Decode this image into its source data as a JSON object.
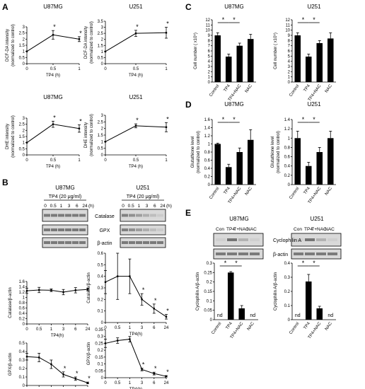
{
  "charts": {
    "A1": {
      "type": "line",
      "title": "U87MG",
      "x": [
        0,
        0.5,
        1
      ],
      "values": [
        1.0,
        2.35,
        2.0
      ],
      "err": [
        0,
        0.35,
        0.2
      ],
      "stars": [
        1,
        2
      ],
      "ylim": [
        0,
        3
      ],
      "yticks": [
        0,
        0.5,
        1,
        1.5,
        2,
        2.5,
        3
      ],
      "xticks": [
        "0",
        "0.5",
        "1"
      ],
      "xlabel": "TP4 (h)",
      "ylabel": [
        "DCF-DA intensity",
        "(normalized to control)"
      ]
    },
    "A2": {
      "type": "line",
      "title": "U251",
      "x": [
        0,
        0.5,
        1
      ],
      "values": [
        1.0,
        2.5,
        2.55
      ],
      "err": [
        0,
        0.25,
        0.45
      ],
      "stars": [
        1,
        2
      ],
      "ylim": [
        0,
        3.5
      ],
      "yticks": [
        0,
        0.5,
        1,
        1.5,
        2,
        2.5,
        3,
        3.5
      ],
      "xticks": [
        "0",
        "0.5",
        "1"
      ],
      "xlabel": "TP4 (h)",
      "ylabel": [
        "DCF-DA intensity",
        "(normalized to control)"
      ]
    },
    "A3": {
      "type": "line",
      "title": "U87MG",
      "x": [
        0,
        0.5,
        1
      ],
      "values": [
        1.0,
        2.5,
        2.15
      ],
      "err": [
        0,
        0.25,
        0.3
      ],
      "stars": [
        1,
        2
      ],
      "ylim": [
        0,
        3
      ],
      "yticks": [
        0,
        0.5,
        1,
        1.5,
        2,
        2.5,
        3
      ],
      "xticks": [
        "0",
        "0.5",
        "1"
      ],
      "xlabel": "TP4 (h)",
      "ylabel": [
        "DHE intensity",
        "(normalized to control)"
      ]
    },
    "A4": {
      "type": "line",
      "title": "U251",
      "x": [
        0,
        0.5,
        1
      ],
      "values": [
        1.0,
        2.2,
        2.1
      ],
      "err": [
        0,
        0.15,
        0.35
      ],
      "stars": [
        1,
        2
      ],
      "ylim": [
        0,
        3
      ],
      "yticks": [
        0,
        0.5,
        1,
        1.5,
        2,
        2.5,
        3
      ],
      "xticks": [
        "0",
        "0.5",
        "1"
      ],
      "xlabel": "TP4 (h)",
      "ylabel": [
        "DHE intensity",
        "(normalized to control)"
      ]
    },
    "B1": {
      "type": "line",
      "x": [
        0,
        0.5,
        1,
        3,
        6,
        24
      ],
      "values": [
        1.25,
        1.28,
        1.27,
        1.2,
        1.27,
        1.3
      ],
      "err": [
        0.1,
        0.1,
        0.05,
        0.1,
        0.1,
        0.05
      ],
      "stars": [],
      "ylim": [
        0,
        1.6
      ],
      "yticks": [
        0,
        0.2,
        0.4,
        0.6,
        0.8,
        1,
        1.2,
        1.4,
        1.6
      ],
      "xticks": [
        "0",
        "0.5",
        "1",
        "3",
        "6",
        "24"
      ],
      "xlabel": "TP4(h)",
      "ylabel": [
        "Catalase/β-actin"
      ]
    },
    "B2": {
      "type": "line",
      "x": [
        0,
        0.5,
        1,
        3,
        6,
        24
      ],
      "values": [
        0.35,
        0.4,
        0.4,
        0.2,
        0.12,
        0.05
      ],
      "err": [
        0.1,
        0.2,
        0.15,
        0.05,
        0.04,
        0.02
      ],
      "stars": [
        3,
        4,
        5
      ],
      "ylim": [
        0,
        0.6
      ],
      "yticks": [
        0,
        0.1,
        0.2,
        0.3,
        0.4,
        0.5,
        0.6
      ],
      "xticks": [
        "0",
        "0.5",
        "1",
        "3",
        "6",
        "24"
      ],
      "xlabel": "TP4(h)",
      "ylabel": [
        "Catalase/β-actin"
      ]
    },
    "B3": {
      "type": "line",
      "x": [
        0,
        0.5,
        1,
        3,
        6,
        24
      ],
      "values": [
        0.34,
        0.33,
        0.25,
        0.13,
        0.08,
        0.03
      ],
      "err": [
        0.04,
        0.05,
        0.05,
        0.03,
        0.02,
        0.01
      ],
      "stars": [
        3,
        4,
        5
      ],
      "ylim": [
        0,
        0.5
      ],
      "yticks": [
        0,
        0.1,
        0.2,
        0.3,
        0.4,
        0.5
      ],
      "xticks": [
        "0",
        "0.5",
        "1",
        "3",
        "6",
        "24"
      ],
      "xlabel": "TP4(h)",
      "ylabel": [
        "GPX/β-actin"
      ]
    },
    "B4": {
      "type": "line",
      "x": [
        0,
        0.5,
        1,
        3,
        6,
        24
      ],
      "values": [
        0.25,
        0.27,
        0.28,
        0.06,
        0.03,
        0.01
      ],
      "err": [
        0.03,
        0.02,
        0.02,
        0.01,
        0.01,
        0.005
      ],
      "stars": [
        3,
        4,
        5
      ],
      "ylim": [
        0,
        0.35
      ],
      "yticks": [
        0,
        0.05,
        0.1,
        0.15,
        0.2,
        0.25,
        0.3,
        0.35
      ],
      "xticks": [
        "0",
        "0.5",
        "1",
        "3",
        "6",
        "24"
      ],
      "xlabel": "TP4(h)",
      "ylabel": [
        "GPX/β-actin"
      ]
    },
    "C1": {
      "type": "bar",
      "title": "U87MG",
      "categories": [
        "Control",
        "TP4",
        "TP4+NAC",
        "NAC"
      ],
      "values": [
        9.0,
        4.9,
        7.0,
        8.3
      ],
      "err": [
        0.5,
        0.5,
        0.5,
        0.9
      ],
      "ylim": [
        0,
        12
      ],
      "yticks": [
        0,
        1,
        2,
        3,
        4,
        5,
        6,
        7,
        8,
        9,
        10,
        11,
        12
      ],
      "ylabel": [
        "Cell number ( x10⁵)"
      ],
      "sig": [
        [
          0,
          1
        ],
        [
          1,
          2
        ]
      ]
    },
    "C2": {
      "type": "bar",
      "title": "U251",
      "categories": [
        "Control",
        "TP4",
        "TP4+NAC",
        "NAC"
      ],
      "values": [
        9.0,
        4.9,
        7.5,
        8.4
      ],
      "err": [
        0.5,
        0.5,
        0.5,
        1.1
      ],
      "ylim": [
        0,
        12
      ],
      "yticks": [
        0,
        1,
        2,
        3,
        4,
        5,
        6,
        7,
        8,
        9,
        10,
        11,
        12
      ],
      "ylabel": [
        "Cell number ( x10⁵)"
      ],
      "sig": [
        [
          0,
          1
        ],
        [
          1,
          2
        ]
      ]
    },
    "D1": {
      "type": "bar",
      "title": "U87MG",
      "categories": [
        "Control",
        "TP4",
        "TP4+NAC",
        "NAC"
      ],
      "values": [
        1.0,
        0.43,
        0.8,
        1.1
      ],
      "err": [
        0.02,
        0.07,
        0.1,
        0.25
      ],
      "ylim": [
        0,
        1.6
      ],
      "yticks": [
        0,
        0.2,
        0.4,
        0.6,
        0.8,
        1,
        1.2,
        1.4,
        1.6
      ],
      "ylabel": [
        "Glutathione level",
        "(normalized to control)"
      ],
      "sig": [
        [
          0,
          1
        ],
        [
          1,
          2
        ]
      ]
    },
    "D2": {
      "type": "bar",
      "title": "U251",
      "categories": [
        "Control",
        "TP4",
        "TP4+NAC",
        "NAC"
      ],
      "values": [
        1.0,
        0.4,
        0.7,
        1.0
      ],
      "err": [
        0.15,
        0.08,
        0.1,
        0.15
      ],
      "ylim": [
        0,
        1.4
      ],
      "yticks": [
        0,
        0.2,
        0.4,
        0.6,
        0.8,
        1,
        1.2,
        1.4
      ],
      "ylabel": [
        "Glutathione level",
        "(normalized to control)"
      ],
      "sig": [
        [
          0,
          1
        ],
        [
          1,
          2
        ]
      ]
    },
    "E1": {
      "type": "bar",
      "categories": [
        "Control",
        "TP4",
        "TP4+NAC",
        "NAC"
      ],
      "values": [
        0,
        0.25,
        0.06,
        0
      ],
      "err": [
        0,
        0.005,
        0.015,
        0
      ],
      "nd": [
        0,
        3
      ],
      "ylim": [
        0,
        0.3
      ],
      "yticks": [
        0,
        0.05,
        0.1,
        0.15,
        0.2,
        0.25,
        0.3
      ],
      "ylabel": [
        "Cyclophilin A/β-actin"
      ],
      "sig": [
        [
          0,
          1
        ],
        [
          1,
          2
        ]
      ]
    },
    "E2": {
      "type": "bar",
      "categories": [
        "Control",
        "TP4",
        "TP4+NAC",
        "NAC"
      ],
      "values": [
        0,
        0.27,
        0.08,
        0
      ],
      "err": [
        0,
        0.05,
        0.015,
        0
      ],
      "nd": [
        0,
        3
      ],
      "ylim": [
        0,
        0.4
      ],
      "yticks": [
        0,
        0.1,
        0.2,
        0.3,
        0.4
      ],
      "ylabel": [
        "Cyclophilin A/β-actin"
      ],
      "sig": [
        [
          0,
          1
        ],
        [
          1,
          2
        ]
      ]
    }
  },
  "panels": {
    "A": "A",
    "B": "B",
    "C": "C",
    "D": "D",
    "E": "E"
  },
  "blots": {
    "B_title_left": "U87MG",
    "B_title_right": "U251",
    "B_treat": "TP4 (20 μg/ml)",
    "B_lanes": [
      "0",
      "0.5",
      "1",
      "3",
      "6",
      "24"
    ],
    "B_unit": "(h)",
    "B_labels": [
      "Catalase",
      "GPX",
      "β-actin"
    ],
    "E_title_left": "U87MG",
    "E_title_right": "U251",
    "E_lanes_left": [
      "Con",
      "TP4",
      "T+NAC",
      "NAC"
    ],
    "E_lanes_right": [
      "Con",
      "TP4",
      "T+NAC",
      "NAC"
    ],
    "E_labels": [
      "Cyclophilin A",
      "β-actin"
    ]
  },
  "marks": {
    "star": "*",
    "nd": "nd"
  }
}
